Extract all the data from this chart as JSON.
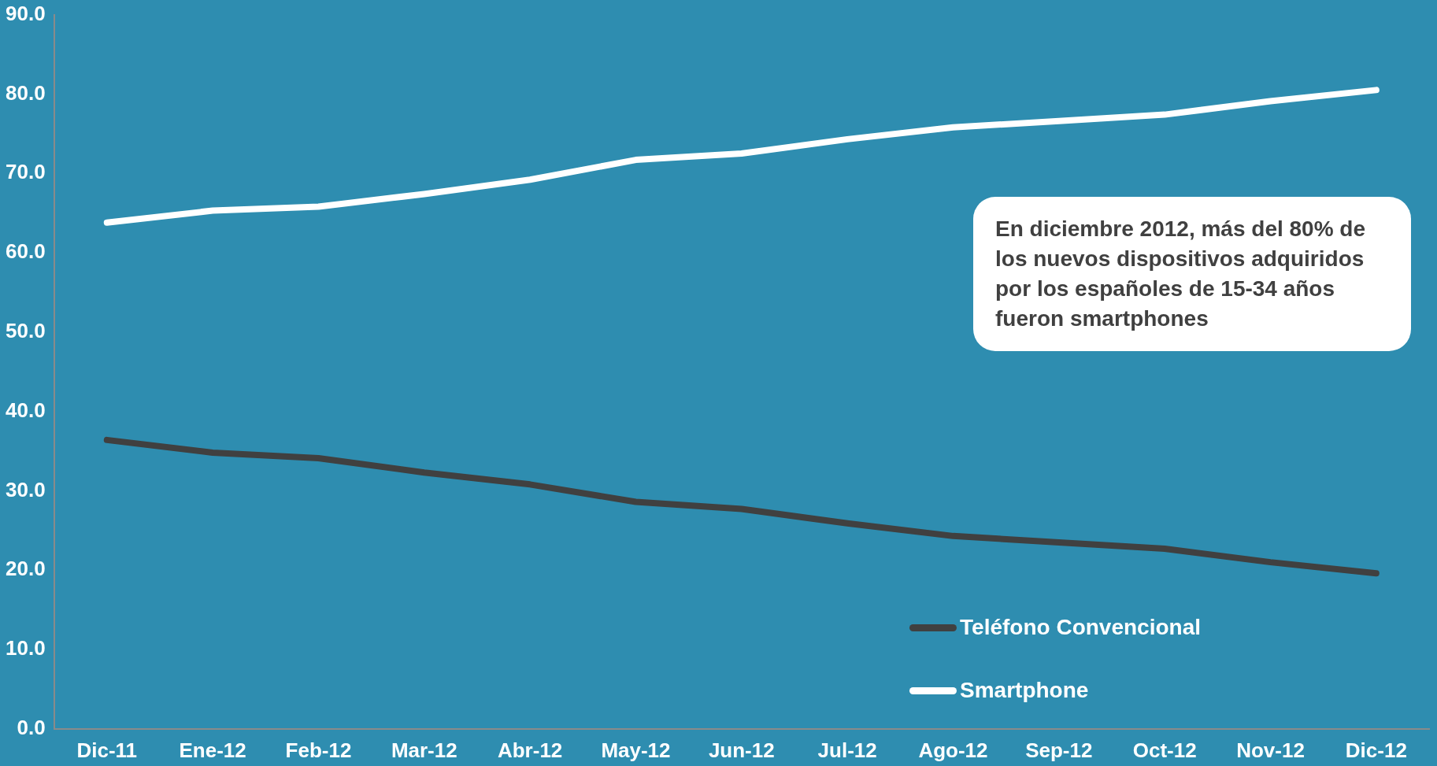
{
  "chart_data": {
    "type": "line",
    "categories": [
      "Dic-11",
      "Ene-12",
      "Feb-12",
      "Mar-12",
      "Abr-12",
      "May-12",
      "Jun-12",
      "Jul-12",
      "Ago-12",
      "Sep-12",
      "Oct-12",
      "Nov-12",
      "Dic-12"
    ],
    "series": [
      {
        "name": "Teléfono Convencional",
        "color": "#404040",
        "values": [
          36.4,
          34.8,
          34.1,
          32.3,
          30.8,
          28.6,
          27.7,
          25.9,
          24.3,
          23.5,
          22.7,
          21.0,
          19.6
        ]
      },
      {
        "name": "Smartphone",
        "color": "#ffffff",
        "values": [
          63.8,
          65.3,
          65.8,
          67.4,
          69.2,
          71.7,
          72.5,
          74.3,
          75.8,
          76.6,
          77.4,
          79.1,
          80.5
        ]
      }
    ],
    "ylim": [
      0,
      90
    ],
    "yticks": [
      {
        "value": 0,
        "label": "0.0"
      },
      {
        "value": 10,
        "label": "10.0"
      },
      {
        "value": 20,
        "label": "20.0"
      },
      {
        "value": 30,
        "label": "30.0"
      },
      {
        "value": 40,
        "label": "40.0"
      },
      {
        "value": 50,
        "label": "50.0"
      },
      {
        "value": 60,
        "label": "60.0"
      },
      {
        "value": 70,
        "label": "70.0"
      },
      {
        "value": 80,
        "label": "80.0"
      },
      {
        "value": 90,
        "label": "90.0"
      }
    ],
    "grid": false,
    "legend": "bottom right",
    "marker": "none",
    "line_style": "solid",
    "annotations": [
      "En diciembre 2012,  más del 80% de los nuevos dispositivos adquiridos por los españoles de 15-34 años fueron smartphones"
    ]
  }
}
